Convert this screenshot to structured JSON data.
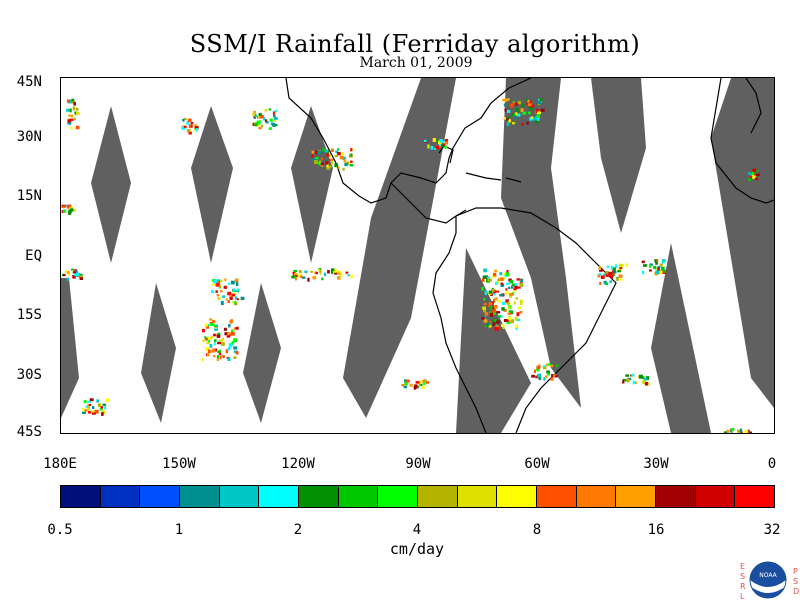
{
  "title": "SSM/I Rainfall (Ferriday algorithm)",
  "date": "March 01, 2009",
  "map": {
    "lat_labels": [
      "45N",
      "30N",
      "15N",
      "EQ",
      "15S",
      "30S",
      "45S"
    ],
    "lon_labels": [
      "180E",
      "150W",
      "120W",
      "90W",
      "60W",
      "30W",
      "0"
    ],
    "lat_range": [
      -45,
      45
    ],
    "lon_range": [
      -180,
      0
    ],
    "swath_gap_color": "#606060",
    "land_outline_color": "#000000"
  },
  "colorbar": {
    "tick_labels": [
      "0.5",
      "1",
      "2",
      "4",
      "8",
      "16",
      "32"
    ],
    "unit": "cm/day",
    "colors": [
      "#00107a",
      "#0030c0",
      "#0050ff",
      "#009090",
      "#00c8c8",
      "#00ffff",
      "#009000",
      "#00c800",
      "#00ff00",
      "#b4b400",
      "#e0e000",
      "#ffff00",
      "#ff5000",
      "#ff7800",
      "#ffa000",
      "#a00000",
      "#d00000",
      "#ff0000"
    ]
  },
  "logo": {
    "left_letters": [
      "E",
      "S",
      "R",
      "L"
    ],
    "right_letters": [
      "P",
      "S",
      "D"
    ],
    "center_text": "NOAA"
  }
}
